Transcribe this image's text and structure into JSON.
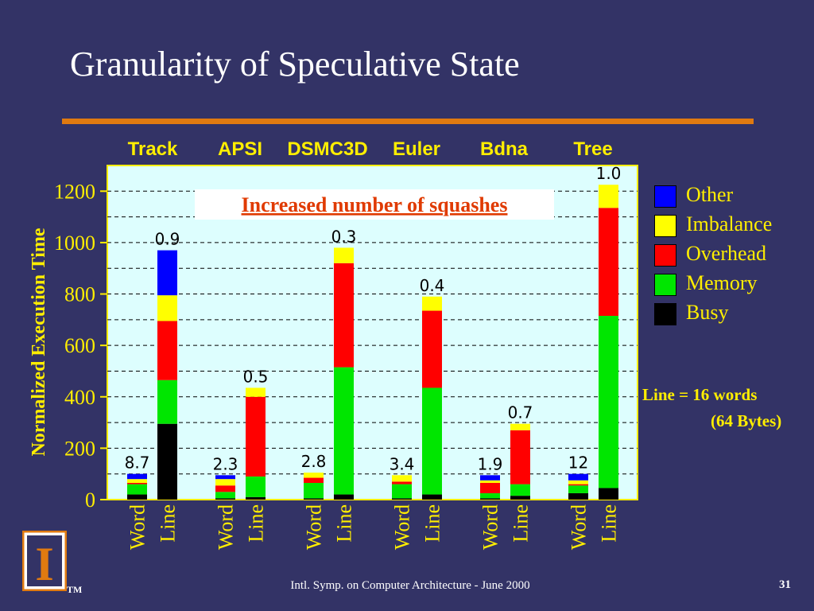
{
  "slide": {
    "title": "Granularity of Speculative State",
    "footer": "Intl. Symp. on Computer Architecture - June 2000",
    "page_number": "31",
    "note_line1": "Line = 16 words",
    "note_line2": "(64 Bytes)",
    "logo_letter": "I",
    "trademark": "TM"
  },
  "colors": {
    "background": "#333366",
    "accent_rule": "#e07a10",
    "text_yellow": "#ffee00",
    "plot_background": "#ddfefe",
    "annotation_red": "#e03a00"
  },
  "chart_data": {
    "type": "bar",
    "stacked": true,
    "ylabel": "Normalized Execution Time",
    "ylim": [
      0,
      1300
    ],
    "yticks": [
      0,
      200,
      400,
      600,
      800,
      1000,
      1200
    ],
    "grid": true,
    "legend_position": "right",
    "annotation": "Increased number of squashes",
    "groups": [
      "Track",
      "APSI",
      "DSMC3D",
      "Euler",
      "Bdna",
      "Tree"
    ],
    "categories": [
      "Word",
      "Line",
      "Word",
      "Line",
      "Word",
      "Line",
      "Word",
      "Line",
      "Word",
      "Line",
      "Word",
      "Line"
    ],
    "bar_labels": [
      "8.7",
      "0.9",
      "2.3",
      "0.5",
      "2.8",
      "0.3",
      "3.4",
      "0.4",
      "1.9",
      "0.7",
      "12",
      "1.0"
    ],
    "series": [
      {
        "name": "Busy",
        "color": "#000000",
        "values": [
          20,
          295,
          5,
          10,
          5,
          20,
          5,
          20,
          5,
          15,
          25,
          45
        ]
      },
      {
        "name": "Memory",
        "color": "#00e600",
        "values": [
          40,
          170,
          25,
          80,
          60,
          495,
          55,
          415,
          20,
          45,
          30,
          670
        ]
      },
      {
        "name": "Overhead",
        "color": "#ff0000",
        "values": [
          5,
          230,
          25,
          310,
          20,
          405,
          10,
          300,
          40,
          210,
          5,
          420
        ]
      },
      {
        "name": "Imbalance",
        "color": "#ffff00",
        "values": [
          15,
          100,
          25,
          35,
          20,
          60,
          25,
          55,
          10,
          25,
          15,
          90
        ]
      },
      {
        "name": "Other",
        "color": "#0000ff",
        "values": [
          20,
          175,
          15,
          0,
          0,
          0,
          0,
          0,
          20,
          0,
          25,
          0
        ]
      }
    ]
  }
}
